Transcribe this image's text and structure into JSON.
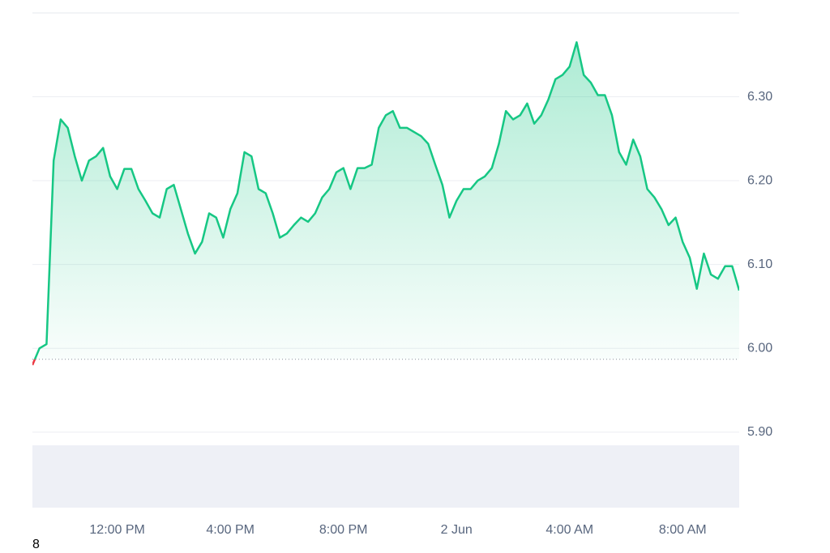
{
  "chart_data": {
    "type": "line",
    "series": [
      {
        "color": "#16c784",
        "below_color": "#ea3943",
        "values": [
          5.98,
          6.0,
          6.005,
          6.224,
          6.273,
          6.263,
          6.229,
          6.2,
          6.224,
          6.229,
          6.239,
          6.205,
          6.19,
          6.214,
          6.214,
          6.19,
          6.176,
          6.161,
          6.156,
          6.19,
          6.195,
          6.166,
          6.137,
          6.113,
          6.127,
          6.161,
          6.156,
          6.132,
          6.166,
          6.185,
          6.234,
          6.229,
          6.19,
          6.185,
          6.161,
          6.132,
          6.137,
          6.147,
          6.156,
          6.151,
          6.161,
          6.18,
          6.19,
          6.21,
          6.215,
          6.19,
          6.215,
          6.215,
          6.219,
          6.263,
          6.278,
          6.283,
          6.263,
          6.263,
          6.258,
          6.253,
          6.244,
          6.219,
          6.195,
          6.156,
          6.176,
          6.19,
          6.19,
          6.2,
          6.205,
          6.215,
          6.244,
          6.283,
          6.273,
          6.278,
          6.292,
          6.268,
          6.278,
          6.297,
          6.321,
          6.326,
          6.336,
          6.365,
          6.326,
          6.317,
          6.302,
          6.302,
          6.278,
          6.234,
          6.219,
          6.249,
          6.229,
          6.19,
          6.18,
          6.166,
          6.147,
          6.156,
          6.127,
          6.108,
          6.071,
          6.113,
          6.088,
          6.083,
          6.098,
          6.098,
          6.069
        ]
      }
    ],
    "baseline": 5.987,
    "xlim": [
      0,
      100
    ],
    "xticks": [
      {
        "value": 12,
        "label": "12:00 PM"
      },
      {
        "value": 28,
        "label": "4:00 PM"
      },
      {
        "value": 44,
        "label": "8:00 PM"
      },
      {
        "value": 60,
        "label": "2 Jun"
      },
      {
        "value": 76,
        "label": "4:00 AM"
      },
      {
        "value": 92,
        "label": "8:00 AM"
      }
    ],
    "ylim": [
      5.81,
      6.4
    ],
    "yticks": [
      {
        "value": 5.9,
        "label": "5.90"
      },
      {
        "value": 6.0,
        "label": "6.00"
      },
      {
        "value": 6.1,
        "label": "6.10"
      },
      {
        "value": 6.2,
        "label": "6.20"
      },
      {
        "value": 6.3,
        "label": "6.30"
      }
    ],
    "grid": true,
    "footnote": "8"
  }
}
